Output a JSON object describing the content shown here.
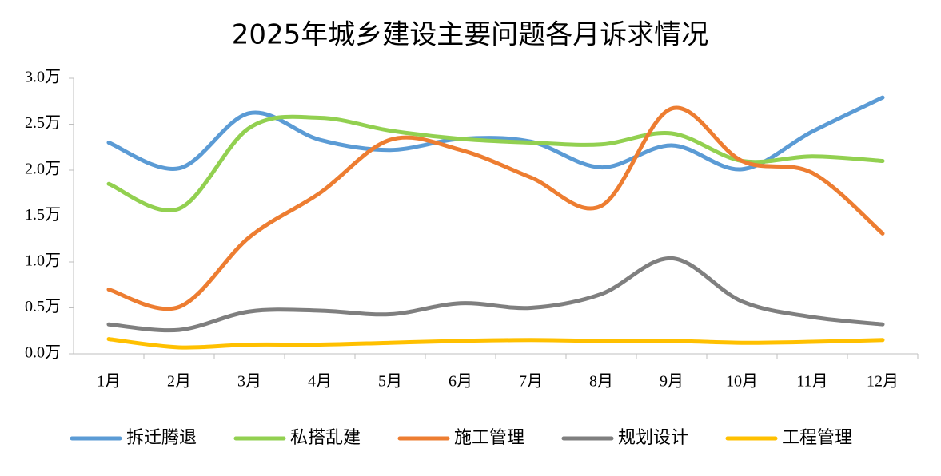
{
  "chart_data": {
    "type": "line",
    "title": "2025年城乡建设主要问题各月诉求情况",
    "categories": [
      "1月",
      "2月",
      "3月",
      "4月",
      "5月",
      "6月",
      "7月",
      "8月",
      "9月",
      "10月",
      "11月",
      "12月"
    ],
    "series": [
      {
        "name": "拆迁腾退",
        "color": "#5b9bd5",
        "values": [
          2.3,
          2.02,
          2.62,
          2.33,
          2.22,
          2.34,
          2.31,
          2.03,
          2.27,
          2.01,
          2.42,
          2.79
        ]
      },
      {
        "name": "私搭乱建",
        "color": "#92d050",
        "values": [
          1.85,
          1.58,
          2.46,
          2.57,
          2.43,
          2.34,
          2.3,
          2.28,
          2.4,
          2.1,
          2.15,
          2.1
        ]
      },
      {
        "name": "施工管理",
        "color": "#ed7d31",
        "values": [
          0.7,
          0.51,
          1.27,
          1.75,
          2.33,
          2.22,
          1.92,
          1.61,
          2.67,
          2.1,
          1.97,
          1.31
        ]
      },
      {
        "name": "规划设计",
        "color": "#7f7f7f",
        "values": [
          0.32,
          0.26,
          0.46,
          0.47,
          0.43,
          0.55,
          0.5,
          0.65,
          1.04,
          0.57,
          0.4,
          0.32
        ]
      },
      {
        "name": "工程管理",
        "color": "#ffc000",
        "values": [
          0.16,
          0.07,
          0.1,
          0.1,
          0.12,
          0.14,
          0.15,
          0.14,
          0.14,
          0.12,
          0.13,
          0.15
        ]
      }
    ],
    "ylim": [
      0,
      3
    ],
    "yticks": [
      {
        "value": 0,
        "label": "0.0万"
      },
      {
        "value": 0.5,
        "label": "0.5万"
      },
      {
        "value": 1,
        "label": "1.0万"
      },
      {
        "value": 1.5,
        "label": "1.5万"
      },
      {
        "value": 2,
        "label": "2.0万"
      },
      {
        "value": 2.5,
        "label": "2.5万"
      },
      {
        "value": 3,
        "label": "3.0万"
      }
    ],
    "smooth": true,
    "legend": "bottom"
  }
}
